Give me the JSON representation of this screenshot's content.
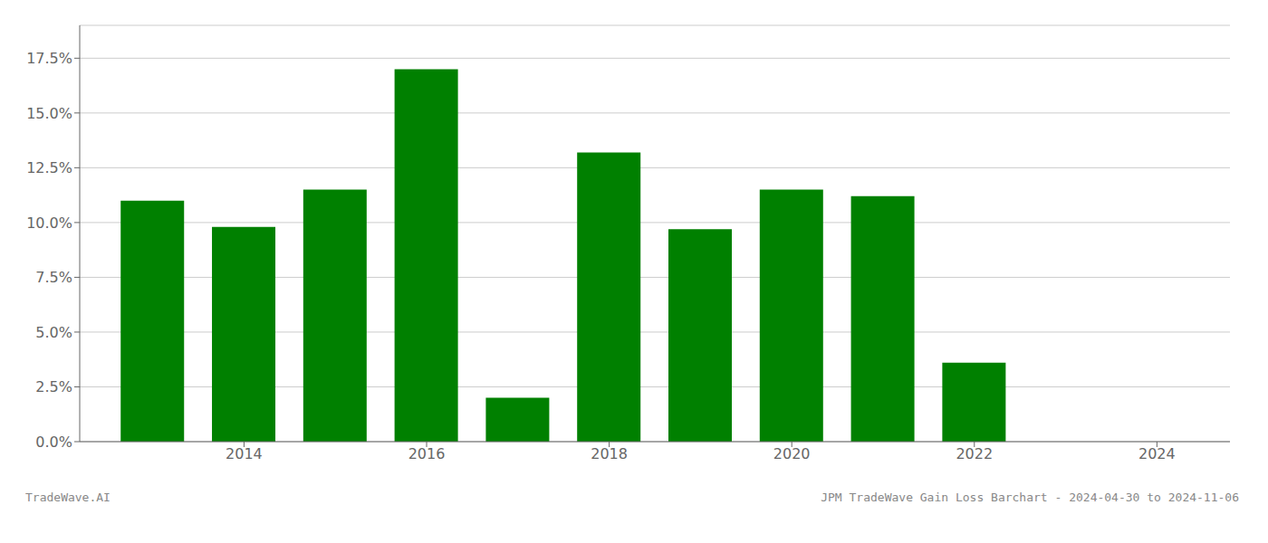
{
  "chart_data": {
    "type": "bar",
    "x": [
      2013,
      2014,
      2015,
      2016,
      2017,
      2018,
      2019,
      2020,
      2021,
      2022,
      2023
    ],
    "values": [
      0.11,
      0.098,
      0.115,
      0.17,
      0.02,
      0.132,
      0.097,
      0.115,
      0.112,
      0.036,
      0.0
    ],
    "color": "#008000",
    "xlim": [
      2012.2,
      2024.8
    ],
    "xticks": [
      2014,
      2016,
      2018,
      2020,
      2022,
      2024
    ],
    "ylim": [
      0,
      0.19
    ],
    "yticks": [
      {
        "value": 0.0,
        "label": "0.0%"
      },
      {
        "value": 0.025,
        "label": "2.5%"
      },
      {
        "value": 0.05,
        "label": "5.0%"
      },
      {
        "value": 0.075,
        "label": "7.5%"
      },
      {
        "value": 0.1,
        "label": "10.0%"
      },
      {
        "value": 0.125,
        "label": "12.5%"
      },
      {
        "value": 0.15,
        "label": "15.0%"
      },
      {
        "value": 0.175,
        "label": "17.5%"
      }
    ],
    "grid": true,
    "annotations": [
      "TradeWave.AI",
      "JPM TradeWave Gain Loss Barchart - 2024-04-30 to 2024-11-06"
    ]
  }
}
